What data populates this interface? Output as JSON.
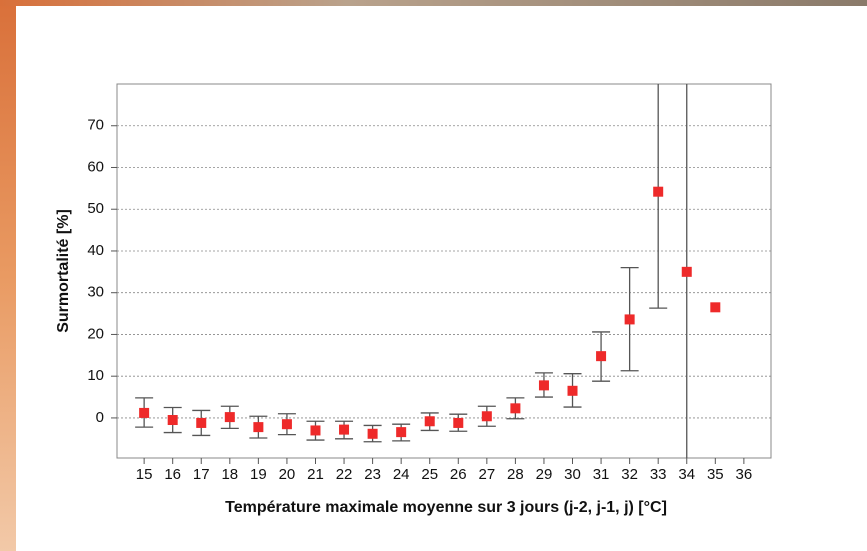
{
  "chart_data": {
    "type": "errorbar",
    "x_label": "Température maximale moyenne sur 3 jours (j-2, j-1, j) [°C]",
    "y_label": "Surmortalité [%]",
    "x": [
      15,
      16,
      17,
      18,
      19,
      20,
      21,
      22,
      23,
      24,
      25,
      26,
      27,
      28,
      29,
      30,
      31,
      32,
      33,
      34,
      35
    ],
    "values": [
      1.2,
      -0.5,
      -1.2,
      0.2,
      -2.2,
      -1.5,
      -3.0,
      -2.8,
      -3.8,
      -3.4,
      -0.8,
      -1.2,
      0.4,
      2.3,
      7.8,
      6.5,
      14.8,
      23.6,
      54.2,
      35.0,
      26.5
    ],
    "lower": [
      -2.2,
      -3.5,
      -4.2,
      -2.5,
      -4.8,
      -4.0,
      -5.3,
      -5.0,
      -5.7,
      -5.5,
      -3.0,
      -3.2,
      -2.0,
      -0.2,
      5.0,
      2.6,
      8.8,
      11.3,
      26.3,
      -20,
      null
    ],
    "upper": [
      4.8,
      2.5,
      1.8,
      2.8,
      0.4,
      1.0,
      -0.8,
      -0.8,
      -1.8,
      -1.5,
      1.2,
      0.9,
      2.8,
      4.8,
      10.8,
      10.6,
      20.6,
      36.0,
      100,
      100,
      null
    ],
    "color": "#ee2a2a",
    "error_color": "#555555",
    "xlim": [
      14.05,
      36.95
    ],
    "xticks": [
      15,
      16,
      17,
      18,
      19,
      20,
      21,
      22,
      23,
      24,
      25,
      26,
      27,
      28,
      29,
      30,
      31,
      32,
      33,
      34,
      35,
      36
    ],
    "ylim": [
      -9.6,
      80
    ],
    "yticks": [
      0,
      10,
      20,
      30,
      40,
      50,
      60,
      70
    ],
    "grid": true
  }
}
